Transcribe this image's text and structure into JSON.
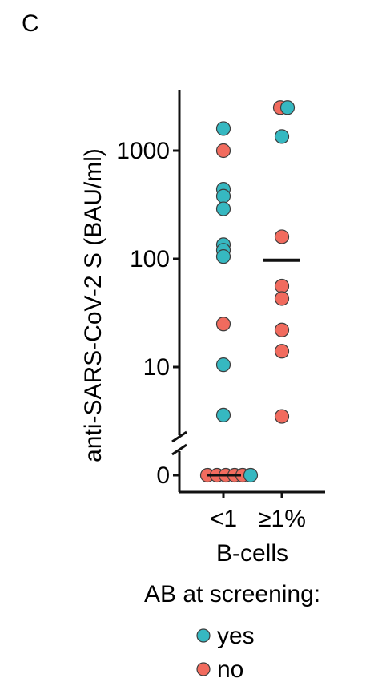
{
  "chart_data": {
    "type": "scatter",
    "panel_label": "C",
    "title": "",
    "xlabel": "B-cells",
    "ylabel": "anti-SARS-CoV-2 S (BAU/ml)",
    "categories": [
      "<1",
      "≥1%"
    ],
    "y_scale": "log",
    "ylim": [
      2,
      3500
    ],
    "y_ticks": [
      {
        "value": 1000,
        "label": "1000"
      },
      {
        "value": 100,
        "label": "100"
      },
      {
        "value": 10,
        "label": "10"
      },
      {
        "value": 0,
        "label": "0"
      }
    ],
    "axis_break": true,
    "series": [
      {
        "name": "yes",
        "color": "#36b8c1",
        "points": [
          {
            "x": "<1",
            "y": 1600
          },
          {
            "x": "<1",
            "y": 440
          },
          {
            "x": "<1",
            "y": 380
          },
          {
            "x": "<1",
            "y": 290
          },
          {
            "x": "<1",
            "y": 135
          },
          {
            "x": "<1",
            "y": 120
          },
          {
            "x": "<1",
            "y": 105
          },
          {
            "x": "<1",
            "y": 10.5
          },
          {
            "x": "<1",
            "y": 3.6
          },
          {
            "x": "<1",
            "y": 0
          },
          {
            "x": "≥1%",
            "y": 2500
          },
          {
            "x": "≥1%",
            "y": 1350
          }
        ]
      },
      {
        "name": "no",
        "color": "#f16b5e",
        "points": [
          {
            "x": "<1",
            "y": 1000
          },
          {
            "x": "<1",
            "y": 25
          },
          {
            "x": "<1",
            "y": 0
          },
          {
            "x": "<1",
            "y": 0
          },
          {
            "x": "<1",
            "y": 0
          },
          {
            "x": "<1",
            "y": 0
          },
          {
            "x": "<1",
            "y": 0
          },
          {
            "x": "≥1%",
            "y": 2500
          },
          {
            "x": "≥1%",
            "y": 160
          },
          {
            "x": "≥1%",
            "y": 56
          },
          {
            "x": "≥1%",
            "y": 43
          },
          {
            "x": "≥1%",
            "y": 22
          },
          {
            "x": "≥1%",
            "y": 14
          },
          {
            "x": "≥1%",
            "y": 3.5
          }
        ]
      }
    ],
    "summary_lines": [
      {
        "x": "<1",
        "y": 0,
        "color": "#111111"
      },
      {
        "x": "≥1%",
        "y": 97,
        "color": "#111111"
      }
    ],
    "legend": {
      "title": "AB at screening:",
      "items": [
        {
          "label": "yes",
          "color": "#36b8c1"
        },
        {
          "label": "no",
          "color": "#f16b5e"
        }
      ]
    }
  }
}
